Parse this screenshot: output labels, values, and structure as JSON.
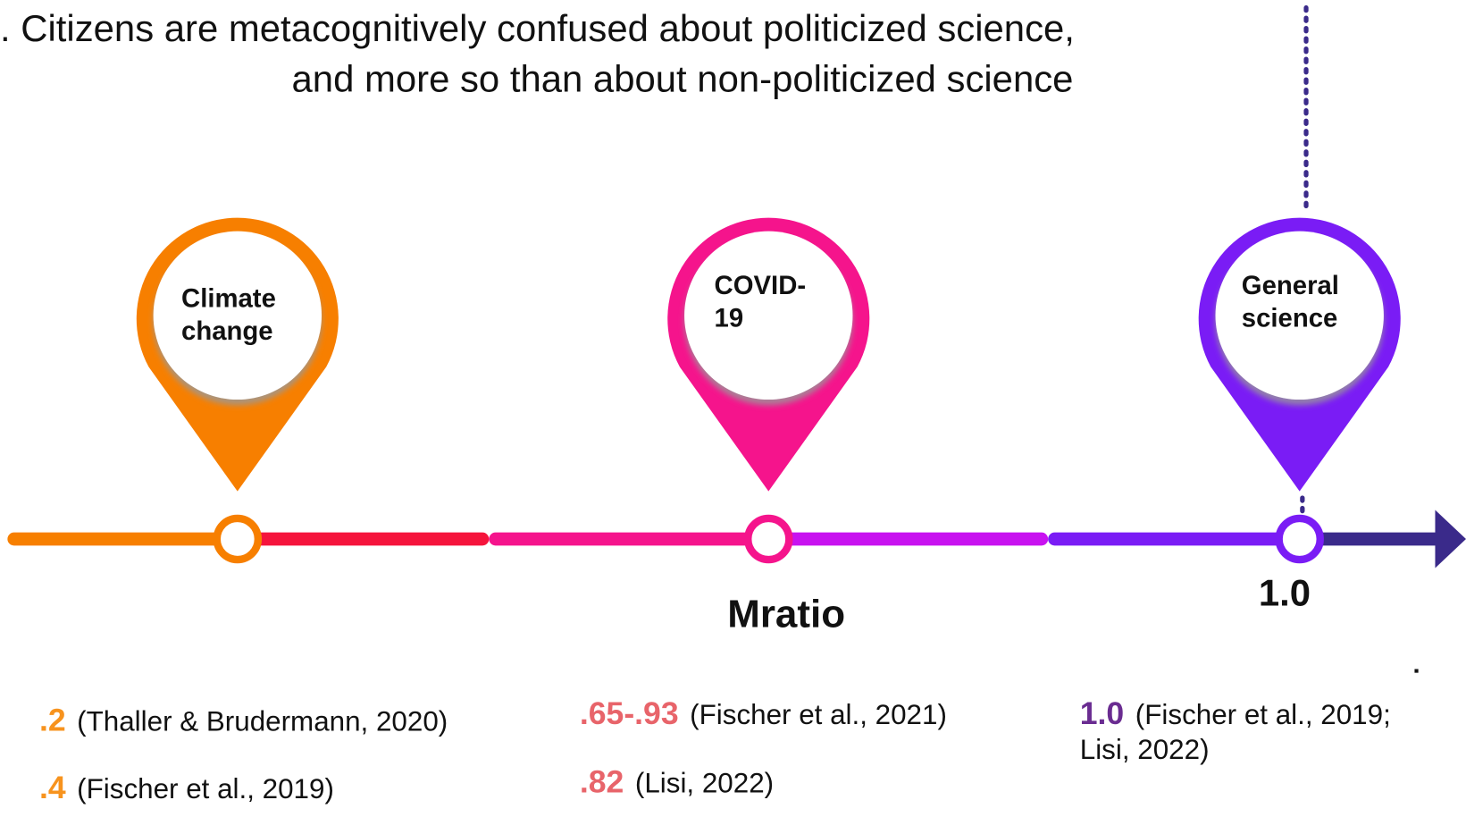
{
  "title": [
    ". Citizens are metacognitively confused about politicized science,",
    "and more so than about non-politicized science"
  ],
  "pins": [
    {
      "label": [
        "Climate",
        "change"
      ]
    },
    {
      "label": [
        "COVID-",
        "19"
      ]
    },
    {
      "label": [
        "General",
        "science"
      ]
    }
  ],
  "axis_label": "Mratio",
  "axis_tick": "1.0",
  "citations": [
    [
      {
        "value": ".2",
        "source": [
          "(Thaller & Brudermann, 2020)"
        ]
      },
      {
        "value": ".4",
        "source": [
          "(Fischer et al., 2019)"
        ]
      }
    ],
    [
      {
        "value": ".65-.93",
        "source": [
          "(Fischer et al., 2021)"
        ]
      },
      {
        "value": ".82",
        "source": [
          "(Lisi, 2022)"
        ]
      }
    ],
    [
      {
        "value": "1.0",
        "source": [
          "(Fischer et al., 2019;",
          "Lisi, 2022)"
        ]
      }
    ]
  ]
}
